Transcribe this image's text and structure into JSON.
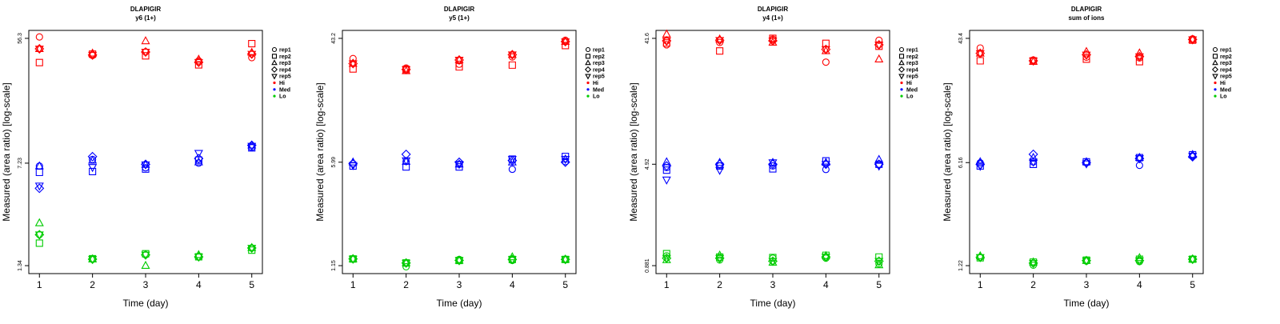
{
  "chart_data": [
    {
      "type": "scatter",
      "title": "DLAPIGIR",
      "subtitle": "y6 (1+)",
      "xlabel": "Time (day)",
      "ylabel": "Measured (area ratio) [log-scale]",
      "yscale": "log",
      "ylim": [
        1.34,
        56.3
      ],
      "yticks": [
        "56.3",
        "7.23",
        "1.34"
      ],
      "xticks": [
        "1",
        "2",
        "3",
        "4",
        "5"
      ],
      "x": [
        1,
        2,
        3,
        4,
        5
      ],
      "series": [
        {
          "name": "rep1",
          "level": "Hi",
          "values": [
            57.6,
            42.5,
            45.1,
            38.9,
            41.0
          ]
        },
        {
          "name": "rep2",
          "level": "Hi",
          "values": [
            37.8,
            43.4,
            42.2,
            36.4,
            51.6
          ]
        },
        {
          "name": "rep3",
          "level": "Hi",
          "values": [
            47.4,
            44.0,
            53.9,
            39.8,
            44.6
          ]
        },
        {
          "name": "rep4",
          "level": "Hi",
          "values": [
            47.4,
            42.8,
            45.0,
            38.0,
            43.5
          ]
        },
        {
          "name": "rep5",
          "level": "Hi",
          "values": [
            47.4,
            42.8,
            45.0,
            38.0,
            43.5
          ]
        },
        {
          "name": "rep1",
          "level": "Med",
          "values": [
            6.89,
            7.69,
            6.7,
            7.23,
            9.37
          ]
        },
        {
          "name": "rep2",
          "level": "Med",
          "values": [
            6.21,
            6.3,
            6.56,
            7.6,
            9.3
          ]
        },
        {
          "name": "rep3",
          "level": "Med",
          "values": [
            6.89,
            7.56,
            7.05,
            7.35,
            9.7
          ]
        },
        {
          "name": "rep4",
          "level": "Med",
          "values": [
            4.78,
            8.05,
            7.1,
            7.8,
            9.7
          ]
        },
        {
          "name": "rep5",
          "level": "Med",
          "values": [
            4.98,
            6.76,
            7.05,
            8.52,
            9.58
          ]
        },
        {
          "name": "rep1",
          "level": "Lo",
          "values": [
            2.23,
            1.49,
            1.6,
            1.55,
            1.79
          ]
        },
        {
          "name": "rep2",
          "level": "Lo",
          "values": [
            1.94,
            1.5,
            1.63,
            1.55,
            1.73
          ]
        },
        {
          "name": "rep3",
          "level": "Lo",
          "values": [
            2.7,
            1.49,
            1.34,
            1.6,
            1.8
          ]
        },
        {
          "name": "rep4",
          "level": "Lo",
          "values": [
            2.23,
            1.49,
            1.6,
            1.55,
            1.79
          ]
        },
        {
          "name": "rep5",
          "level": "Lo",
          "values": [
            2.23,
            1.49,
            1.6,
            1.55,
            1.79
          ]
        }
      ]
    },
    {
      "type": "scatter",
      "title": "DLAPIGIR",
      "subtitle": "y5 (1+)",
      "xlabel": "Time (day)",
      "ylabel": "Measured (area ratio) [log-scale]",
      "yscale": "log",
      "ylim": [
        1.15,
        43.2
      ],
      "yticks": [
        "43.2",
        "5.99",
        "1.15"
      ],
      "xticks": [
        "1",
        "2",
        "3",
        "4",
        "5"
      ],
      "x": [
        1,
        2,
        3,
        4,
        5
      ],
      "series": [
        {
          "name": "rep1",
          "level": "Hi",
          "values": [
            31.3,
            26.9,
            28.6,
            32.1,
            41.9
          ]
        },
        {
          "name": "rep2",
          "level": "Hi",
          "values": [
            26.5,
            26.3,
            27.4,
            28.2,
            38.5
          ]
        },
        {
          "name": "rep3",
          "level": "Hi",
          "values": [
            28.9,
            25.7,
            30.6,
            33.3,
            41.0
          ]
        },
        {
          "name": "rep4",
          "level": "Hi",
          "values": [
            28.9,
            26.3,
            30.6,
            33.3,
            41.0
          ]
        },
        {
          "name": "rep5",
          "level": "Hi",
          "values": [
            28.9,
            26.3,
            30.6,
            33.3,
            41.0
          ]
        },
        {
          "name": "rep1",
          "level": "Med",
          "values": [
            5.85,
            6.05,
            5.8,
            5.35,
            6.05
          ]
        },
        {
          "name": "rep2",
          "level": "Med",
          "values": [
            5.63,
            5.55,
            5.55,
            6.29,
            6.57
          ]
        },
        {
          "name": "rep3",
          "level": "Med",
          "values": [
            5.99,
            6.05,
            5.8,
            5.99,
            6.29
          ]
        },
        {
          "name": "rep4",
          "level": "Med",
          "values": [
            5.85,
            6.79,
            5.99,
            6.15,
            5.99
          ]
        },
        {
          "name": "rep5",
          "level": "Med",
          "values": [
            5.7,
            6.15,
            5.8,
            6.29,
            6.29
          ]
        },
        {
          "name": "rep1",
          "level": "Lo",
          "values": [
            1.28,
            1.13,
            1.27,
            1.25,
            1.27
          ]
        },
        {
          "name": "rep2",
          "level": "Lo",
          "values": [
            1.28,
            1.2,
            1.25,
            1.27,
            1.27
          ]
        },
        {
          "name": "rep3",
          "level": "Lo",
          "values": [
            1.28,
            1.2,
            1.25,
            1.32,
            1.27
          ]
        },
        {
          "name": "rep4",
          "level": "Lo",
          "values": [
            1.28,
            1.2,
            1.25,
            1.27,
            1.27
          ]
        },
        {
          "name": "rep5",
          "level": "Lo",
          "values": [
            1.28,
            1.2,
            1.25,
            1.27,
            1.27
          ]
        }
      ]
    },
    {
      "type": "scatter",
      "title": "DLAPIGIR",
      "subtitle": "y4 (1+)",
      "xlabel": "Time (day)",
      "ylabel": "Measured (area ratio) [log-scale]",
      "yscale": "log",
      "ylim": [
        0.881,
        41.6
      ],
      "yticks": [
        "41.6",
        "4.92",
        "0.881"
      ],
      "xticks": [
        "1",
        "2",
        "3",
        "4",
        "5"
      ],
      "x": [
        1,
        2,
        3,
        4,
        5
      ],
      "series": [
        {
          "name": "rep1",
          "level": "Hi",
          "values": [
            37.3,
            38.8,
            41.0,
            27.8,
            40.3
          ]
        },
        {
          "name": "rep2",
          "level": "Hi",
          "values": [
            38.5,
            33.6,
            41.6,
            38.2,
            36.4
          ]
        },
        {
          "name": "rep3",
          "level": "Hi",
          "values": [
            44.6,
            41.0,
            38.8,
            33.6,
            29.2
          ]
        },
        {
          "name": "rep4",
          "level": "Hi",
          "values": [
            39.9,
            40.3,
            39.9,
            34.5,
            37.3
          ]
        },
        {
          "name": "rep5",
          "level": "Hi",
          "values": [
            39.9,
            40.3,
            39.9,
            34.5,
            37.3
          ]
        },
        {
          "name": "rep1",
          "level": "Med",
          "values": [
            4.65,
            4.78,
            4.78,
            4.5,
            4.92
          ]
        },
        {
          "name": "rep2",
          "level": "Med",
          "values": [
            4.45,
            4.78,
            4.55,
            5.21,
            4.92
          ]
        },
        {
          "name": "rep3",
          "level": "Med",
          "values": [
            5.11,
            5.06,
            5.06,
            5.06,
            5.32
          ]
        },
        {
          "name": "rep4",
          "level": "Med",
          "values": [
            4.78,
            4.92,
            4.92,
            4.92,
            4.92
          ]
        },
        {
          "name": "rep5",
          "level": "Med",
          "values": [
            3.78,
            4.45,
            5.06,
            4.92,
            4.78
          ]
        },
        {
          "name": "rep1",
          "level": "Lo",
          "values": [
            1.04,
            0.97,
            1.0,
            1.0,
            0.91
          ]
        },
        {
          "name": "rep2",
          "level": "Lo",
          "values": [
            1.08,
            1.02,
            1.01,
            1.05,
            1.02
          ]
        },
        {
          "name": "rep3",
          "level": "Lo",
          "values": [
            0.97,
            1.05,
            0.93,
            1.04,
            0.89
          ]
        },
        {
          "name": "rep4",
          "level": "Lo",
          "values": [
            1.0,
            1.0,
            0.95,
            1.02,
            0.95
          ]
        },
        {
          "name": "rep5",
          "level": "Lo",
          "values": [
            1.0,
            1.0,
            0.95,
            1.02,
            0.95
          ]
        }
      ]
    },
    {
      "type": "scatter",
      "title": "DLAPIGIR",
      "subtitle": "sum of ions",
      "xlabel": "Time (day)",
      "ylabel": "Measured (area ratio) [log-scale]",
      "yscale": "log",
      "ylim": [
        1.22,
        43.4
      ],
      "yticks": [
        "43.4",
        "6.16",
        "1.22"
      ],
      "xticks": [
        "1",
        "2",
        "3",
        "4",
        "5"
      ],
      "x": [
        1,
        2,
        3,
        4,
        5
      ],
      "series": [
        {
          "name": "rep1",
          "level": "Hi",
          "values": [
            37.3,
            30.9,
            32.3,
            31.9,
            43.1
          ]
        },
        {
          "name": "rep2",
          "level": "Hi",
          "values": [
            30.5,
            30.5,
            31.3,
            30.1,
            42.2
          ]
        },
        {
          "name": "rep3",
          "level": "Hi",
          "values": [
            34.3,
            30.1,
            35.2,
            34.4,
            42.6
          ]
        },
        {
          "name": "rep4",
          "level": "Hi",
          "values": [
            34.3,
            30.5,
            33.5,
            32.6,
            42.6
          ]
        },
        {
          "name": "rep5",
          "level": "Hi",
          "values": [
            34.3,
            30.5,
            33.5,
            32.6,
            42.6
          ]
        },
        {
          "name": "rep1",
          "level": "Med",
          "values": [
            6.14,
            6.23,
            6.14,
            5.9,
            6.84
          ]
        },
        {
          "name": "rep2",
          "level": "Med",
          "values": [
            5.83,
            5.99,
            6.23,
            6.66,
            6.97
          ]
        },
        {
          "name": "rep3",
          "level": "Med",
          "values": [
            6.23,
            6.66,
            6.23,
            6.66,
            6.97
          ]
        },
        {
          "name": "rep4",
          "level": "Med",
          "values": [
            5.99,
            7.02,
            6.14,
            6.57,
            6.75
          ]
        },
        {
          "name": "rep5",
          "level": "Med",
          "values": [
            5.83,
            6.23,
            6.06,
            6.57,
            6.84
          ]
        },
        {
          "name": "rep1",
          "level": "Lo",
          "values": [
            1.39,
            1.23,
            1.31,
            1.3,
            1.35
          ]
        },
        {
          "name": "rep2",
          "level": "Lo",
          "values": [
            1.38,
            1.29,
            1.33,
            1.35,
            1.35
          ]
        },
        {
          "name": "rep3",
          "level": "Lo",
          "values": [
            1.42,
            1.29,
            1.32,
            1.38,
            1.35
          ]
        },
        {
          "name": "rep4",
          "level": "Lo",
          "values": [
            1.39,
            1.27,
            1.32,
            1.32,
            1.35
          ]
        },
        {
          "name": "rep5",
          "level": "Lo",
          "values": [
            1.39,
            1.27,
            1.32,
            1.32,
            1.35
          ]
        }
      ]
    }
  ],
  "legend": {
    "placement": "right",
    "reps": [
      {
        "label": "rep1",
        "marker": "circle"
      },
      {
        "label": "rep2",
        "marker": "square"
      },
      {
        "label": "rep3",
        "marker": "triangle-up"
      },
      {
        "label": "rep4",
        "marker": "diamond"
      },
      {
        "label": "rep5",
        "marker": "triangle-down"
      }
    ],
    "levels": [
      {
        "label": "Hi",
        "color": "#ff0000"
      },
      {
        "label": "Med",
        "color": "#0000ff"
      },
      {
        "label": "Lo",
        "color": "#00cc00"
      }
    ]
  }
}
